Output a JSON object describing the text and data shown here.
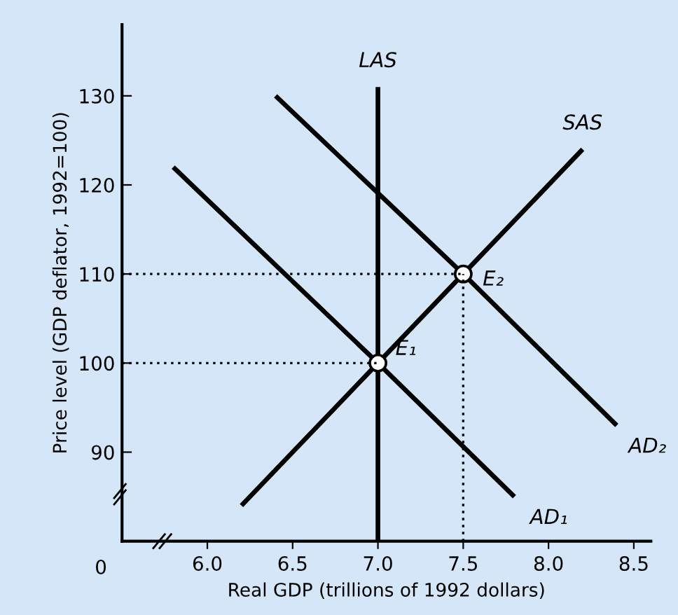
{
  "chart_data": {
    "type": "line",
    "xlabel": "Real GDP (trillions of 1992 dollars)",
    "ylabel": "Price level (GDP deflator, 1992=100)",
    "xlim": [
      5.5,
      8.6
    ],
    "ylim": [
      80,
      138
    ],
    "xticks": [
      {
        "value": 6.0,
        "label": "6.0"
      },
      {
        "value": 6.5,
        "label": "6.5"
      },
      {
        "value": 7.0,
        "label": "7.0"
      },
      {
        "value": 7.5,
        "label": "7.5"
      },
      {
        "value": 8.0,
        "label": "8.0"
      },
      {
        "value": 8.5,
        "label": "8.5"
      }
    ],
    "yticks": [
      90,
      100,
      110,
      120,
      130
    ],
    "grid": false,
    "legend": false,
    "series": [
      {
        "color": "#000000",
        "line_style": "solid",
        "x": [
          7.0,
          7.0
        ],
        "values": [
          80,
          131
        ]
      },
      {
        "color": "#000000",
        "line_style": "solid",
        "x": [
          6.2,
          7.0,
          7.5,
          8.2
        ],
        "values": [
          84,
          100,
          110,
          124
        ]
      },
      {
        "color": "#000000",
        "line_style": "solid",
        "x": [
          5.8,
          7.0,
          7.8
        ],
        "values": [
          122,
          100,
          85
        ]
      },
      {
        "color": "#000000",
        "line_style": "solid",
        "x": [
          6.4,
          7.5,
          8.4
        ],
        "values": [
          130,
          110,
          93
        ]
      },
      {
        "color": "#000000",
        "line_style": "dotted",
        "x": [
          5.5,
          7.0
        ],
        "values": [
          100,
          100
        ]
      },
      {
        "color": "#000000",
        "line_style": "dotted",
        "x": [
          5.5,
          7.5
        ],
        "values": [
          110,
          110
        ]
      },
      {
        "color": "#000000",
        "line_style": "dotted",
        "x": [
          7.5,
          7.5
        ],
        "values": [
          80,
          110
        ]
      },
      {
        "type": "scatter",
        "color": "#000000",
        "marker": "circle",
        "x": [
          7.0,
          7.5
        ],
        "values": [
          100,
          110
        ]
      }
    ],
    "annotations": [
      "0",
      {
        "text": "LAS",
        "x": 7.0,
        "y": 131
      },
      {
        "text": "SAS",
        "x": 8.2,
        "y": 124
      },
      {
        "text": "AD₁",
        "x": 7.8,
        "y": 85
      },
      {
        "text": "AD₂",
        "x": 8.4,
        "y": 93
      },
      {
        "text": "E₁",
        "x": 7.0,
        "y": 100
      },
      {
        "text": "E₂",
        "x": 7.5,
        "y": 110
      }
    ]
  }
}
